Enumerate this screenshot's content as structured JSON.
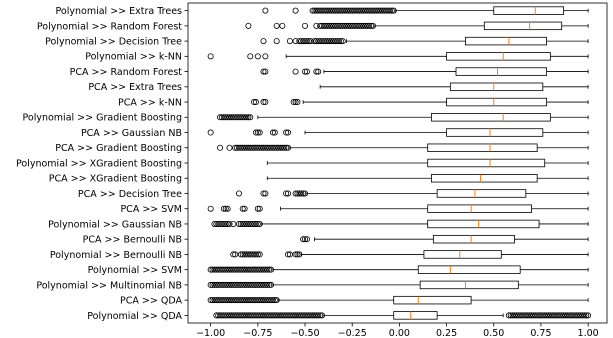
{
  "chart_data": {
    "type": "boxplot",
    "orientation": "horizontal",
    "xlim": [
      -1.12,
      1.1
    ],
    "xticks": [
      -1.0,
      -0.75,
      -0.5,
      -0.25,
      0.0,
      0.25,
      0.5,
      0.75,
      1.0
    ],
    "xtick_labels": [
      "−1.00",
      "−0.75",
      "−0.50",
      "−0.25",
      "0.00",
      "0.25",
      "0.50",
      "0.75",
      "1.00"
    ],
    "grid": false,
    "colors": {
      "box": "#000000",
      "median": "#ff7f0e",
      "flier": "#000000"
    },
    "categories": [
      "Polynomial >> Extra Trees",
      "Polynomial >> Random Forest",
      "Polynomial >> Decision Tree",
      "Polynomial >> k-NN",
      "PCA >> Random Forest",
      "PCA >> Extra Trees",
      "PCA >> k-NN",
      "Polynomial >> Gradient Boosting",
      "PCA >> Gaussian NB",
      "PCA >> Gradient Boosting",
      "Polynomial >> XGradient Boosting",
      "PCA >> XGradient Boosting",
      "PCA >> Decision Tree",
      "PCA >> SVM",
      "Polynomial >> Gaussian NB",
      "PCA >> Bernoulli NB",
      "Polynomial >> Bernoulli NB",
      "Polynomial >> SVM",
      "Polynomial >> Multinomial NB",
      "PCA >> QDA",
      "Polynomial >> QDA"
    ],
    "boxes": [
      {
        "whislo": -0.02,
        "q1": 0.5,
        "med": 0.72,
        "q3": 0.87,
        "whishi": 1.0,
        "fliers": [
          -0.71,
          -0.55,
          -0.46,
          -0.45,
          -0.44,
          -0.43,
          -0.42,
          -0.41,
          -0.4,
          -0.39,
          -0.38,
          -0.37,
          -0.36,
          -0.35,
          -0.34,
          -0.33,
          -0.32,
          -0.31,
          -0.3,
          -0.29,
          -0.28,
          -0.27,
          -0.26,
          -0.25,
          -0.24,
          -0.23,
          -0.22,
          -0.21,
          -0.2,
          -0.19,
          -0.18,
          -0.17,
          -0.16,
          -0.15,
          -0.14,
          -0.13,
          -0.12,
          -0.11,
          -0.1,
          -0.09,
          -0.08,
          -0.07,
          -0.06,
          -0.05,
          -0.04,
          -0.03
        ]
      },
      {
        "whislo": -0.13,
        "q1": 0.45,
        "med": 0.69,
        "q3": 0.86,
        "whishi": 1.0,
        "fliers": [
          -0.8,
          -0.65,
          -0.62,
          -0.5,
          -0.44,
          -0.42,
          -0.41,
          -0.4,
          -0.39,
          -0.38,
          -0.37,
          -0.36,
          -0.35,
          -0.34,
          -0.33,
          -0.32,
          -0.31,
          -0.3,
          -0.29,
          -0.28,
          -0.27,
          -0.26,
          -0.25,
          -0.24,
          -0.23,
          -0.22,
          -0.21,
          -0.2,
          -0.19,
          -0.18,
          -0.17,
          -0.16,
          -0.15,
          -0.14
        ]
      },
      {
        "whislo": -0.28,
        "q1": 0.35,
        "med": 0.58,
        "q3": 0.78,
        "whishi": 1.0,
        "fliers": [
          -0.72,
          -0.65,
          -0.58,
          -0.55,
          -0.53,
          -0.52,
          -0.51,
          -0.5,
          -0.49,
          -0.48,
          -0.47,
          -0.45,
          -0.44,
          -0.43,
          -0.42,
          -0.41,
          -0.4,
          -0.39,
          -0.38,
          -0.37,
          -0.36,
          -0.35,
          -0.34,
          -0.33,
          -0.32,
          -0.31,
          -0.3
        ]
      },
      {
        "whislo": -0.6,
        "q1": 0.25,
        "med": 0.55,
        "q3": 0.8,
        "whishi": 1.0,
        "fliers": [
          -1.0,
          -0.79,
          -0.75,
          -0.71
        ]
      },
      {
        "whislo": -0.4,
        "q1": 0.3,
        "med": 0.52,
        "q3": 0.78,
        "whishi": 1.0,
        "fliers": [
          -0.72,
          -0.71,
          -0.55,
          -0.5,
          -0.49,
          -0.44,
          -0.43
        ]
      },
      {
        "whislo": -0.42,
        "q1": 0.27,
        "med": 0.5,
        "q3": 0.76,
        "whishi": 1.0,
        "fliers": []
      },
      {
        "whislo": -0.51,
        "q1": 0.25,
        "med": 0.5,
        "q3": 0.78,
        "whishi": 1.0,
        "fliers": [
          -0.77,
          -0.76,
          -0.72,
          -0.71,
          -0.56,
          -0.55,
          -0.54
        ]
      },
      {
        "whislo": -0.75,
        "q1": 0.17,
        "med": 0.55,
        "q3": 0.8,
        "whishi": 1.0,
        "fliers": [
          -0.95,
          -0.94,
          -0.93,
          -0.92,
          -0.91,
          -0.9,
          -0.89,
          -0.88,
          -0.87,
          -0.86,
          -0.85,
          -0.84,
          -0.83,
          -0.82,
          -0.81,
          -0.8,
          -0.79
        ]
      },
      {
        "whislo": -0.5,
        "q1": 0.25,
        "med": 0.48,
        "q3": 0.76,
        "whishi": 1.0,
        "fliers": [
          -1.0,
          -0.76,
          -0.75,
          -0.74,
          -0.67,
          -0.66,
          -0.6,
          -0.59
        ]
      },
      {
        "whislo": -0.58,
        "q1": 0.15,
        "med": 0.48,
        "q3": 0.73,
        "whishi": 1.0,
        "fliers": [
          -0.95,
          -0.9,
          -0.87,
          -0.86,
          -0.85,
          -0.84,
          -0.83,
          -0.82,
          -0.81,
          -0.8,
          -0.79,
          -0.78,
          -0.77,
          -0.76,
          -0.75,
          -0.74,
          -0.73,
          -0.72,
          -0.71,
          -0.7,
          -0.69,
          -0.68,
          -0.67,
          -0.66,
          -0.65,
          -0.64,
          -0.63,
          -0.62,
          -0.61,
          -0.6,
          -0.59
        ]
      },
      {
        "whislo": -0.7,
        "q1": 0.15,
        "med": 0.48,
        "q3": 0.77,
        "whishi": 1.0,
        "fliers": []
      },
      {
        "whislo": -0.7,
        "q1": 0.17,
        "med": 0.43,
        "q3": 0.73,
        "whishi": 1.0,
        "fliers": []
      },
      {
        "whislo": -0.49,
        "q1": 0.2,
        "med": 0.4,
        "q3": 0.67,
        "whishi": 1.0,
        "fliers": [
          -0.85,
          -0.72,
          -0.71,
          -0.6,
          -0.59,
          -0.55,
          -0.54,
          -0.53,
          -0.52,
          -0.51,
          -0.5
        ]
      },
      {
        "whislo": -0.63,
        "q1": 0.15,
        "med": 0.38,
        "q3": 0.7,
        "whishi": 1.0,
        "fliers": [
          -1.0,
          -0.93,
          -0.92,
          -0.91,
          -0.83,
          -0.82,
          -0.75,
          -0.74
        ]
      },
      {
        "whislo": -0.73,
        "q1": 0.15,
        "med": 0.42,
        "q3": 0.74,
        "whishi": 1.0,
        "fliers": [
          -0.98,
          -0.97,
          -0.96,
          -0.95,
          -0.94,
          -0.93,
          -0.92,
          -0.91,
          -0.9,
          -0.88,
          -0.85,
          -0.84,
          -0.83,
          -0.82,
          -0.81,
          -0.8,
          -0.79,
          -0.78,
          -0.77,
          -0.76,
          -0.75,
          -0.74
        ]
      },
      {
        "whislo": -0.45,
        "q1": 0.18,
        "med": 0.38,
        "q3": 0.61,
        "whishi": 1.0,
        "fliers": [
          -0.51,
          -0.5,
          -0.49
        ]
      },
      {
        "whislo": -0.52,
        "q1": 0.13,
        "med": 0.32,
        "q3": 0.54,
        "whishi": 1.0,
        "fliers": [
          -0.88,
          -0.87,
          -0.84,
          -0.83,
          -0.82,
          -0.81,
          -0.8,
          -0.79,
          -0.78,
          -0.77,
          -0.76,
          -0.75,
          -0.74,
          -0.59,
          -0.58,
          -0.55,
          -0.54,
          -0.53
        ]
      },
      {
        "whislo": -0.67,
        "q1": 0.1,
        "med": 0.27,
        "q3": 0.64,
        "whishi": 1.0,
        "fliers": [
          -1.0,
          -0.99,
          -0.98,
          -0.97,
          -0.96,
          -0.95,
          -0.94,
          -0.93,
          -0.92,
          -0.91,
          -0.9,
          -0.89,
          -0.88,
          -0.87,
          -0.86,
          -0.85,
          -0.84,
          -0.83,
          -0.82,
          -0.81,
          -0.8,
          -0.79,
          -0.78,
          -0.77,
          -0.76,
          -0.75,
          -0.74,
          -0.73,
          -0.72,
          -0.71,
          -0.7,
          -0.69,
          -0.68
        ]
      },
      {
        "whislo": -0.67,
        "q1": 0.11,
        "med": 0.35,
        "q3": 0.63,
        "whishi": 1.0,
        "fliers": [
          -1.0,
          -0.99,
          -0.98,
          -0.97,
          -0.96,
          -0.95,
          -0.94,
          -0.93,
          -0.92,
          -0.91,
          -0.9,
          -0.89,
          -0.88,
          -0.87,
          -0.86,
          -0.85,
          -0.84,
          -0.83,
          -0.82,
          -0.81,
          -0.8,
          -0.79,
          -0.78,
          -0.77,
          -0.76,
          -0.75,
          -0.74,
          -0.73,
          -0.72,
          -0.71,
          -0.7,
          -0.69,
          -0.68
        ]
      },
      {
        "whislo": -0.64,
        "q1": -0.03,
        "med": 0.1,
        "q3": 0.38,
        "whishi": 1.0,
        "fliers": [
          -1.0,
          -0.99,
          -0.98,
          -0.97,
          -0.96,
          -0.95,
          -0.94,
          -0.93,
          -0.92,
          -0.91,
          -0.9,
          -0.89,
          -0.88,
          -0.87,
          -0.86,
          -0.85,
          -0.84,
          -0.83,
          -0.82,
          -0.81,
          -0.8,
          -0.79,
          -0.78,
          -0.77,
          -0.76,
          -0.75,
          -0.74,
          -0.73,
          -0.72,
          -0.71,
          -0.7,
          -0.69,
          -0.68,
          -0.67,
          -0.66,
          -0.65
        ]
      },
      {
        "whislo": -0.4,
        "q1": -0.03,
        "med": 0.06,
        "q3": 0.2,
        "whishi": 0.55,
        "fliers": [
          -0.97,
          -0.96,
          -0.95,
          -0.94,
          -0.93,
          -0.92,
          -0.91,
          -0.9,
          -0.89,
          -0.88,
          -0.87,
          -0.86,
          -0.85,
          -0.84,
          -0.83,
          -0.82,
          -0.81,
          -0.8,
          -0.79,
          -0.78,
          -0.77,
          -0.76,
          -0.75,
          -0.74,
          -0.73,
          -0.72,
          -0.71,
          -0.7,
          -0.69,
          -0.68,
          -0.67,
          -0.66,
          -0.65,
          -0.64,
          -0.63,
          -0.62,
          -0.61,
          -0.6,
          -0.59,
          -0.58,
          -0.57,
          -0.56,
          -0.55,
          -0.54,
          -0.53,
          -0.52,
          -0.51,
          -0.5,
          -0.49,
          -0.48,
          -0.47,
          -0.46,
          -0.45,
          -0.44,
          -0.43,
          -0.42,
          -0.41,
          0.58,
          0.59,
          0.6,
          0.61,
          0.62,
          0.63,
          0.64,
          0.65,
          0.66,
          0.67,
          0.68,
          0.69,
          0.7,
          0.71,
          0.72,
          0.73,
          0.74,
          0.75,
          0.76,
          0.77,
          0.78,
          0.79,
          0.8,
          0.81,
          0.82,
          0.83,
          0.84,
          0.85,
          0.86,
          0.87,
          0.88,
          0.89,
          0.9,
          0.91,
          0.92,
          0.93,
          0.94,
          0.95,
          0.96,
          0.97,
          0.98,
          0.99,
          1.0
        ]
      }
    ]
  }
}
